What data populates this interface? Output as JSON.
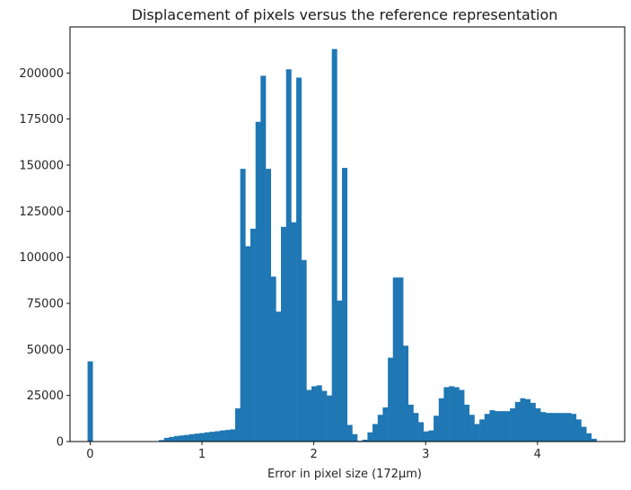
{
  "chart_data": {
    "type": "bar",
    "title": "Displacement of pixels versus the reference representation",
    "xlabel": "Error in pixel size (172µm)",
    "ylabel": "",
    "xlim": [
      -0.18,
      4.78
    ],
    "ylim": [
      0,
      225000
    ],
    "grid": false,
    "bar_color": "#1f77b4",
    "bin_width": 0.0455,
    "xticks": [
      {
        "value": 0,
        "label": "0"
      },
      {
        "value": 1,
        "label": "1"
      },
      {
        "value": 2,
        "label": "2"
      },
      {
        "value": 3,
        "label": "3"
      },
      {
        "value": 4,
        "label": "4"
      }
    ],
    "yticks": [
      {
        "value": 0,
        "label": "0"
      },
      {
        "value": 25000,
        "label": "25000"
      },
      {
        "value": 50000,
        "label": "50000"
      },
      {
        "value": 75000,
        "label": "75000"
      },
      {
        "value": 100000,
        "label": "100000"
      },
      {
        "value": 125000,
        "label": "125000"
      },
      {
        "value": 150000,
        "label": "150000"
      },
      {
        "value": 175000,
        "label": "175000"
      },
      {
        "value": 200000,
        "label": "200000"
      }
    ],
    "bins_start": [
      -0.023,
      0.023,
      0.068,
      0.114,
      0.159,
      0.205,
      0.25,
      0.296,
      0.341,
      0.387,
      0.432,
      0.478,
      0.523,
      0.569,
      0.614,
      0.66,
      0.705,
      0.751,
      0.796,
      0.842,
      0.887,
      0.933,
      0.978,
      1.024,
      1.069,
      1.115,
      1.16,
      1.206,
      1.251,
      1.297,
      1.342,
      1.388,
      1.433,
      1.479,
      1.524,
      1.57,
      1.615,
      1.661,
      1.706,
      1.752,
      1.797,
      1.843,
      1.888,
      1.934,
      1.979,
      2.025,
      2.07,
      2.116,
      2.161,
      2.207,
      2.252,
      2.298,
      2.343,
      2.389,
      2.434,
      2.48,
      2.525,
      2.571,
      2.616,
      2.662,
      2.707,
      2.753,
      2.798,
      2.844,
      2.889,
      2.935,
      2.98,
      3.026,
      3.071,
      3.117,
      3.162,
      3.208,
      3.253,
      3.299,
      3.344,
      3.39,
      3.435,
      3.481,
      3.526,
      3.572,
      3.617,
      3.663,
      3.708,
      3.754,
      3.799,
      3.845,
      3.89,
      3.936,
      3.981,
      4.027,
      4.072,
      4.118,
      4.163,
      4.209,
      4.254,
      4.3,
      4.345,
      4.391,
      4.436,
      4.482,
      4.527
    ],
    "values": [
      43500,
      0,
      0,
      0,
      0,
      0,
      0,
      0,
      0,
      0,
      0,
      0,
      0,
      0,
      800,
      2000,
      2500,
      3000,
      3300,
      3600,
      4000,
      4300,
      4600,
      5000,
      5300,
      5600,
      6000,
      6300,
      6600,
      18000,
      148000,
      106000,
      115500,
      173500,
      198500,
      148000,
      89500,
      70500,
      116500,
      202000,
      119000,
      197500,
      98500,
      28000,
      30000,
      30500,
      27500,
      25000,
      213000,
      76500,
      148500,
      9000,
      4000,
      400,
      1000,
      5000,
      9500,
      14500,
      18500,
      45500,
      89000,
      89000,
      52000,
      20000,
      15500,
      10500,
      5500,
      6000,
      14000,
      23500,
      29500,
      30000,
      29500,
      28000,
      20000,
      14500,
      9500,
      12000,
      15000,
      17000,
      16500,
      16500,
      16500,
      18000,
      21500,
      23500,
      23000,
      21000,
      18000,
      16000,
      15500,
      15500,
      15500,
      15500,
      15500,
      15000,
      12000,
      8000,
      4500,
      1500,
      0
    ]
  }
}
